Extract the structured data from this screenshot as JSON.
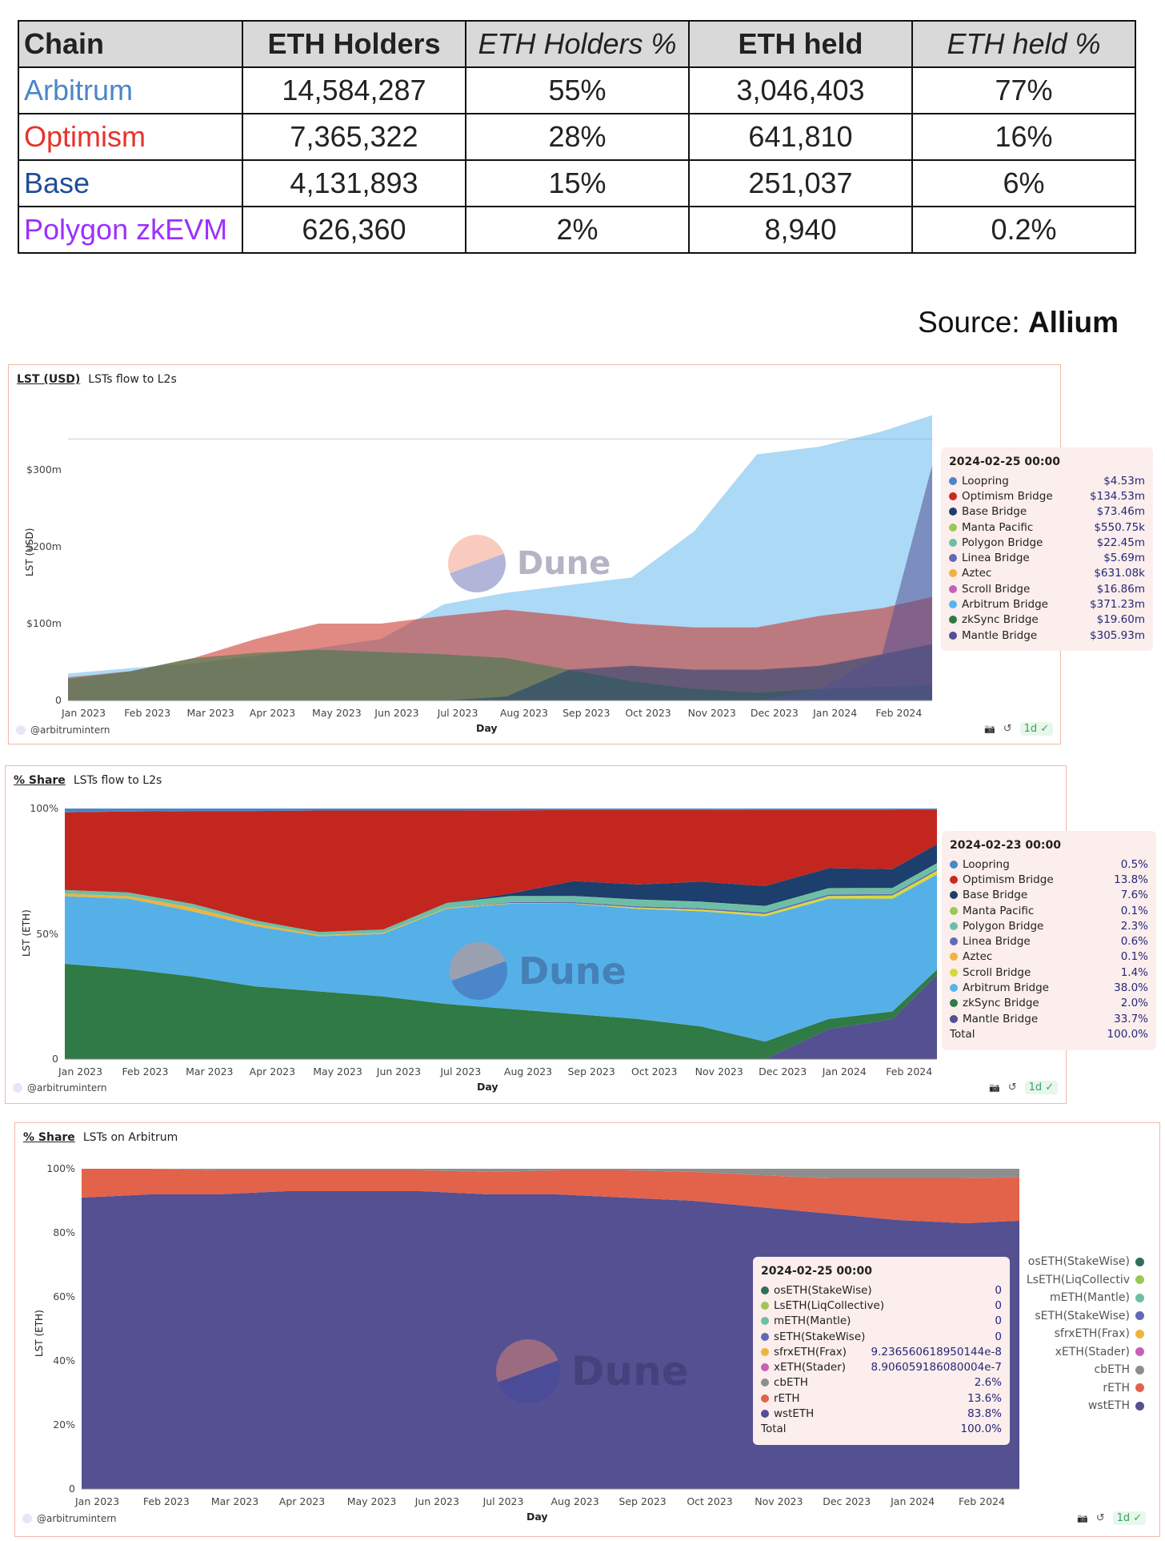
{
  "table": {
    "headers": [
      "Chain",
      "ETH Holders",
      "ETH Holders %",
      "ETH held",
      "ETH held %"
    ],
    "rows": [
      {
        "chain": "Arbitrum",
        "color": "#4a86c8",
        "holders": "14,584,287",
        "holders_pct": "55%",
        "held": "3,046,403",
        "held_pct": "77%"
      },
      {
        "chain": "Optimism",
        "color": "#e8322a",
        "holders": "7,365,322",
        "holders_pct": "28%",
        "held": "641,810",
        "held_pct": "16%"
      },
      {
        "chain": "Base",
        "color": "#1f4e9a",
        "holders": "4,131,893",
        "holders_pct": "15%",
        "held": "251,037",
        "held_pct": "6%"
      },
      {
        "chain": "Polygon zkEVM",
        "color": "#9b30ff",
        "holders": "626,360",
        "holders_pct": "2%",
        "held": "8,940",
        "held_pct": "0.2%"
      }
    ]
  },
  "source": {
    "label": "Source:",
    "name": "Allium"
  },
  "common": {
    "author": "@arbitrumintern",
    "refresh_badge": "1d",
    "watermark": "Dune",
    "xlabel": "Day"
  },
  "chart_data": [
    {
      "type": "area",
      "tab": "LST (USD)",
      "title": "LSTs flow to L2s",
      "ylabel": "LST (USD)",
      "xlabel": "Day",
      "x": [
        0,
        1,
        2,
        3,
        4,
        5,
        6,
        7,
        8,
        9,
        10,
        11,
        12,
        13,
        13.8
      ],
      "x_tick_labels": [
        "Jan 2023",
        "Feb 2023",
        "Mar 2023",
        "Apr 2023",
        "May 2023",
        "Jun 2023",
        "Jul 2023",
        "Aug 2023",
        "Sep 2023",
        "Oct 2023",
        "Nov 2023",
        "Dec 2023",
        "Jan 2024",
        "Feb 2024"
      ],
      "y_ticks": [
        {
          "v": 0,
          "label": "0"
        },
        {
          "v": 100,
          "label": "$100m"
        },
        {
          "v": 200,
          "label": "$200m"
        },
        {
          "v": 300,
          "label": "$300m"
        }
      ],
      "ylim": [
        0,
        380
      ],
      "stacked": false,
      "series": [
        {
          "name": "Arbitrum Bridge",
          "color": "#5ab4ec",
          "values": [
            35,
            42,
            48,
            58,
            68,
            80,
            125,
            140,
            150,
            160,
            220,
            320,
            330,
            350,
            371
          ]
        },
        {
          "name": "Optimism Bridge",
          "color": "#c9291f",
          "values": [
            30,
            38,
            55,
            80,
            100,
            100,
            110,
            118,
            110,
            100,
            95,
            95,
            110,
            120,
            134.5
          ]
        },
        {
          "name": "zkSync Bridge",
          "color": "#2f7a45",
          "values": [
            28,
            38,
            55,
            62,
            66,
            63,
            60,
            55,
            40,
            25,
            15,
            10,
            15,
            18,
            19.6
          ]
        },
        {
          "name": "Base Bridge",
          "color": "#1c3f6e",
          "values": [
            0,
            0,
            0,
            0,
            0,
            0,
            0,
            5,
            40,
            45,
            40,
            40,
            45,
            60,
            73.5
          ]
        },
        {
          "name": "Mantle Bridge",
          "color": "#545091",
          "values": [
            0,
            0,
            0,
            0,
            0,
            0,
            0,
            0,
            0,
            0,
            0,
            0,
            15,
            60,
            306
          ]
        }
      ],
      "tooltip": {
        "date": "2024-02-25 00:00",
        "items": [
          {
            "name": "Loopring",
            "color": "#4a86c8",
            "value": "$4.53m"
          },
          {
            "name": "Optimism Bridge",
            "color": "#c9291f",
            "value": "$134.53m"
          },
          {
            "name": "Base Bridge",
            "color": "#1c3f6e",
            "value": "$73.46m"
          },
          {
            "name": "Manta Pacific",
            "color": "#9bc756",
            "value": "$550.75k"
          },
          {
            "name": "Polygon Bridge",
            "color": "#6cbfa6",
            "value": "$22.45m"
          },
          {
            "name": "Linea Bridge",
            "color": "#6169b5",
            "value": "$5.69m"
          },
          {
            "name": "Aztec",
            "color": "#efb43c",
            "value": "$631.08k"
          },
          {
            "name": "Scroll Bridge",
            "color": "#c561b3",
            "value": "$16.86m"
          },
          {
            "name": "Arbitrum Bridge",
            "color": "#5ab4ec",
            "value": "$371.23m"
          },
          {
            "name": "zkSync Bridge",
            "color": "#2f7a45",
            "value": "$19.60m"
          },
          {
            "name": "Mantle Bridge",
            "color": "#545091",
            "value": "$305.93m"
          }
        ]
      }
    },
    {
      "type": "area",
      "tab": "% Share",
      "title": "LSTs flow to L2s",
      "ylabel": "LST (ETH)",
      "xlabel": "Day",
      "x": [
        0,
        1,
        2,
        3,
        4,
        5,
        6,
        7,
        8,
        9,
        10,
        11,
        12,
        13,
        13.7
      ],
      "x_tick_labels": [
        "Jan 2023",
        "Feb 2023",
        "Mar 2023",
        "Apr 2023",
        "May 2023",
        "Jun 2023",
        "Jul 2023",
        "Aug 2023",
        "Sep 2023",
        "Oct 2023",
        "Nov 2023",
        "Dec 2023",
        "Jan 2024",
        "Feb 2024"
      ],
      "y_ticks": [
        {
          "v": 0,
          "label": "0"
        },
        {
          "v": 50,
          "label": "50%"
        },
        {
          "v": 100,
          "label": "100%"
        }
      ],
      "ylim": [
        0,
        100
      ],
      "stacked": true,
      "series": [
        {
          "name": "Mantle Bridge",
          "color": "#545091",
          "values": [
            0,
            0,
            0,
            0,
            0,
            0,
            0,
            0,
            0,
            0,
            0,
            0,
            12,
            16,
            33.7
          ]
        },
        {
          "name": "zkSync Bridge",
          "color": "#2f7a45",
          "values": [
            38,
            36,
            33,
            29,
            27,
            25,
            22,
            20,
            18,
            16,
            13,
            7,
            4,
            3,
            2
          ]
        },
        {
          "name": "Arbitrum Bridge",
          "color": "#55b0e8",
          "values": [
            27,
            28,
            26,
            24,
            22,
            25,
            38,
            42,
            44,
            44,
            46,
            50,
            48,
            45,
            38
          ]
        },
        {
          "name": "Scroll Bridge",
          "color": "#d8d83a",
          "values": [
            0,
            0,
            0,
            0,
            0,
            0,
            0,
            0,
            0,
            0.3,
            0.5,
            0.8,
            1,
            1.2,
            1.4
          ]
        },
        {
          "name": "Aztec",
          "color": "#efb43c",
          "values": [
            1,
            1,
            1.5,
            1,
            0.5,
            0.4,
            0.3,
            0.3,
            0.2,
            0.2,
            0.2,
            0.1,
            0.1,
            0.1,
            0.1
          ]
        },
        {
          "name": "Linea Bridge",
          "color": "#6169b5",
          "values": [
            0,
            0,
            0,
            0,
            0,
            0,
            0,
            0.3,
            0.4,
            0.5,
            0.5,
            0.6,
            0.6,
            0.6,
            0.6
          ]
        },
        {
          "name": "Polygon Bridge",
          "color": "#6cbfa6",
          "values": [
            1.5,
            1.5,
            1.5,
            1.3,
            1.2,
            1.3,
            2,
            2.5,
            2.5,
            2.6,
            2.5,
            2.5,
            2.4,
            2.3,
            2.3
          ]
        },
        {
          "name": "Manta Pacific",
          "color": "#9bc756",
          "values": [
            0,
            0,
            0,
            0,
            0,
            0,
            0,
            0,
            0,
            0.1,
            0.1,
            0.1,
            0.1,
            0.1,
            0.1
          ]
        },
        {
          "name": "Base Bridge",
          "color": "#1c3f6e",
          "values": [
            0,
            0,
            0,
            0,
            0,
            0,
            0,
            1,
            6,
            6,
            8,
            8,
            8,
            7.5,
            7.6
          ]
        },
        {
          "name": "Optimism Bridge",
          "color": "#c2261f",
          "values": [
            31,
            32.3,
            37,
            43.7,
            48.5,
            47.5,
            36.9,
            33.2,
            28.3,
            29.7,
            28.6,
            30.4,
            23.3,
            23.7,
            13.8
          ]
        },
        {
          "name": "Loopring",
          "color": "#4a86c8",
          "values": [
            1.5,
            1.2,
            1,
            1,
            0.8,
            0.8,
            0.8,
            0.7,
            0.6,
            0.6,
            0.6,
            0.5,
            0.5,
            0.5,
            0.5
          ]
        }
      ],
      "tooltip": {
        "date": "2024-02-23 00:00",
        "items": [
          {
            "name": "Loopring",
            "color": "#4a86c8",
            "value": "0.5%"
          },
          {
            "name": "Optimism Bridge",
            "color": "#c9291f",
            "value": "13.8%"
          },
          {
            "name": "Base Bridge",
            "color": "#1c3f6e",
            "value": "7.6%"
          },
          {
            "name": "Manta Pacific",
            "color": "#9bc756",
            "value": "0.1%"
          },
          {
            "name": "Polygon Bridge",
            "color": "#6cbfa6",
            "value": "2.3%"
          },
          {
            "name": "Linea Bridge",
            "color": "#6169b5",
            "value": "0.6%"
          },
          {
            "name": "Aztec",
            "color": "#efb43c",
            "value": "0.1%"
          },
          {
            "name": "Scroll Bridge",
            "color": "#d8d83a",
            "value": "1.4%"
          },
          {
            "name": "Arbitrum Bridge",
            "color": "#5ab4ec",
            "value": "38.0%"
          },
          {
            "name": "zkSync Bridge",
            "color": "#2f7a45",
            "value": "2.0%"
          },
          {
            "name": "Mantle Bridge",
            "color": "#545091",
            "value": "33.7%"
          }
        ],
        "total_label": "Total",
        "total_value": "100.0%"
      }
    },
    {
      "type": "area",
      "tab": "% Share",
      "title": "LSTs on Arbitrum",
      "ylabel": "LST (ETH)",
      "xlabel": "Day",
      "x": [
        0,
        1,
        2,
        3,
        4,
        5,
        6,
        7,
        8,
        9,
        10,
        11,
        12,
        13,
        13.8
      ],
      "x_tick_labels": [
        "Jan 2023",
        "Feb 2023",
        "Mar 2023",
        "Apr 2023",
        "May 2023",
        "Jun 2023",
        "Jul 2023",
        "Aug 2023",
        "Sep 2023",
        "Oct 2023",
        "Nov 2023",
        "Dec 2023",
        "Jan 2024",
        "Feb 2024"
      ],
      "y_ticks": [
        {
          "v": 0,
          "label": "0"
        },
        {
          "v": 20,
          "label": "20%"
        },
        {
          "v": 40,
          "label": "40%"
        },
        {
          "v": 60,
          "label": "60%"
        },
        {
          "v": 80,
          "label": "80%"
        },
        {
          "v": 100,
          "label": "100%"
        }
      ],
      "ylim": [
        0,
        100
      ],
      "stacked": true,
      "series": [
        {
          "name": "wstETH",
          "color": "#545091",
          "values": [
            91,
            92,
            92,
            93,
            93,
            93,
            92,
            92,
            91,
            90,
            88,
            86,
            84,
            83,
            83.8
          ]
        },
        {
          "name": "rETH",
          "color": "#e2624a",
          "values": [
            9,
            8,
            7.5,
            6.5,
            6.5,
            6.5,
            7,
            7.5,
            8.5,
            9,
            10,
            11,
            13,
            14,
            13.6
          ]
        },
        {
          "name": "cbETH",
          "color": "#8e8e8e",
          "values": [
            0,
            0,
            0.5,
            0.5,
            0.5,
            0.5,
            1,
            0.5,
            0.5,
            1,
            2,
            3,
            3,
            3,
            2.6
          ]
        }
      ],
      "legend": [
        {
          "name": "osETH(StakeWise)",
          "color": "#2f6e5e"
        },
        {
          "name": "LsETH(LiqCollectiv",
          "color": "#9bc756"
        },
        {
          "name": "mETH(Mantle)",
          "color": "#6cbfa6"
        },
        {
          "name": "sETH(StakeWise)",
          "color": "#6169b5"
        },
        {
          "name": "sfrxETH(Frax)",
          "color": "#efb43c"
        },
        {
          "name": "xETH(Stader)",
          "color": "#c561b3"
        },
        {
          "name": "cbETH",
          "color": "#8e8e8e"
        },
        {
          "name": "rETH",
          "color": "#e2624a"
        },
        {
          "name": "wstETH",
          "color": "#545091"
        }
      ],
      "tooltip": {
        "date": "2024-02-25 00:00",
        "items": [
          {
            "name": "osETH(StakeWise)",
            "color": "#2f6e5e",
            "value": "0"
          },
          {
            "name": "LsETH(LiqCollective)",
            "color": "#9bc756",
            "value": "0"
          },
          {
            "name": "mETH(Mantle)",
            "color": "#6cbfa6",
            "value": "0"
          },
          {
            "name": "sETH(StakeWise)",
            "color": "#6169b5",
            "value": "0"
          },
          {
            "name": "sfrxETH(Frax)",
            "color": "#efb43c",
            "value": "9.236560618950144e-8"
          },
          {
            "name": "xETH(Stader)",
            "color": "#c561b3",
            "value": "8.906059186080004e-7"
          },
          {
            "name": "cbETH",
            "color": "#8e8e8e",
            "value": "2.6%"
          },
          {
            "name": "rETH",
            "color": "#e2624a",
            "value": "13.6%"
          },
          {
            "name": "wstETH",
            "color": "#545091",
            "value": "83.8%"
          }
        ],
        "total_label": "Total",
        "total_value": "100.0%"
      }
    }
  ]
}
